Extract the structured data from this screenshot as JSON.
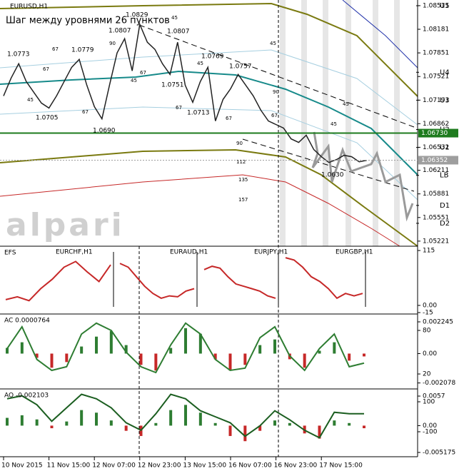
{
  "chart_data": [
    {
      "type": "line",
      "title": "EURUSD,H1",
      "subtitle": "Шаг между уровнями 26 пунктов",
      "watermark": "alpari",
      "categories": [
        "10 Nov 2015",
        null,
        null,
        null,
        null,
        null,
        "11 Nov 15:00",
        null,
        null,
        null,
        null,
        null,
        "12 Nov 07:00",
        null,
        null,
        null,
        null,
        null,
        "12 Nov 23:00",
        null,
        null,
        null,
        null,
        null,
        "13 Nov 15:00",
        null,
        null,
        null,
        null,
        null,
        "16 Nov 07:00",
        null,
        null,
        null,
        null,
        null,
        "16 Nov 23:00",
        null,
        null,
        null,
        null,
        null,
        "17 Nov 15:00",
        null,
        null,
        null,
        null,
        null,
        null
      ],
      "series": [
        {
          "color": "#222222",
          "values": [
            1.0725,
            1.075,
            1.077,
            1.0745,
            1.073,
            1.0715,
            1.0708,
            1.0725,
            1.0745,
            1.0765,
            1.0776,
            1.074,
            1.071,
            1.0693,
            1.074,
            1.0785,
            1.0805,
            1.076,
            1.0825,
            1.08,
            1.079,
            1.077,
            1.0755,
            1.08,
            1.074,
            1.0716,
            1.0745,
            1.0765,
            1.069,
            1.072,
            1.0735,
            1.0755,
            1.074,
            1.0725,
            1.0705,
            1.069,
            1.0685,
            1.068,
            1.0665,
            1.066,
            1.067,
            1.065,
            1.064,
            1.0632,
            1.0636,
            1.0642,
            1.064,
            1.0633,
            1.0635
          ]
        }
      ],
      "ylim": [
        1.0515,
        1.0859
      ],
      "yticks": [
        1.08511,
        1.08181,
        1.07851,
        1.07521,
        1.07191,
        1.06862,
        1.06532,
        1.06211,
        1.05881,
        1.05551,
        1.05221
      ],
      "levels": [
        {
          "name": "U5",
          "value": 1.0851
        },
        {
          "name": "U4",
          "value": 1.0758
        },
        {
          "name": "U3",
          "value": 1.0719
        },
        {
          "name": "U2",
          "value": 1.0678
        },
        {
          "name": "U1",
          "value": 1.0653
        },
        {
          "name": "LB",
          "value": 1.0614
        },
        {
          "name": "D1",
          "value": 1.0572
        },
        {
          "name": "D2",
          "value": 1.0547
        }
      ],
      "price_labels": [
        {
          "value": 1.0673,
          "label": "1.06730",
          "color": "#1e7b1e"
        },
        {
          "value": 1.06352,
          "label": "1.06352",
          "color": "#9e9e9e"
        }
      ],
      "swing_labels": [
        "1.0773",
        "1.0705",
        "1.0779",
        "1.0690",
        "1.0807",
        "1.0829",
        "1.0807",
        "1.0751",
        "1.0769",
        "1.0713",
        "1.0757",
        "1.0630"
      ],
      "step_labels": [
        67,
        67,
        45,
        67,
        90,
        67,
        45,
        45,
        45,
        90,
        67,
        67,
        45,
        67,
        45,
        45,
        90,
        112,
        135,
        157
      ]
    },
    {
      "type": "multi",
      "title": "EFS",
      "series": [
        {
          "name": "EURCHF,H1",
          "color": "#c62828",
          "values": [
            12,
            18,
            10,
            35,
            55,
            80,
            92,
            70,
            50,
            85
          ]
        },
        {
          "name": "EURAUD,H1",
          "color": "#c62828",
          "values": [
            88,
            80,
            60,
            40,
            25,
            15,
            20,
            18,
            30,
            35
          ]
        },
        {
          "name": "EURJPY,H1",
          "color": "#c62828",
          "values": [
            75,
            82,
            78,
            60,
            45,
            40,
            35,
            30,
            20,
            15
          ]
        },
        {
          "name": "EURGBP,H1",
          "color": "#c62828",
          "values": [
            100,
            95,
            80,
            60,
            50,
            35,
            15,
            25,
            20,
            25
          ]
        }
      ],
      "ylim": [
        -18,
        124
      ],
      "yticks": [
        115,
        {
          "value": 0,
          "label": "0.00"
        },
        -15
      ]
    },
    {
      "type": "bar",
      "title": "AC 0.0000764",
      "values": [
        0.0004,
        0.0008,
        -0.0003,
        -0.001,
        -0.0006,
        0.0005,
        0.0012,
        0.0016,
        0.0006,
        -0.0008,
        -0.0012,
        0.0004,
        0.0018,
        0.0014,
        -0.0004,
        -0.0012,
        -0.0008,
        0.0006,
        0.001,
        -0.0004,
        -0.001,
        0.0002,
        0.0008,
        -0.0005,
        -0.0002
      ],
      "series": [
        {
          "color": "#2e7d32",
          "axis": "y2",
          "values": [
            55,
            85,
            40,
            25,
            30,
            75,
            90,
            80,
            50,
            30,
            22,
            60,
            90,
            75,
            40,
            25,
            28,
            70,
            85,
            45,
            25,
            55,
            75,
            30,
            35
          ]
        }
      ],
      "ylim": [
        -0.0025,
        0.0028
      ],
      "yticks": [
        0.002245,
        {
          "value": 0,
          "label": "0.00"
        },
        -0.002078
      ],
      "y2lim": [
        -0.6,
        102.6
      ],
      "y2ticks": [
        80,
        20
      ]
    },
    {
      "type": "bar",
      "title": "AO -0.002103",
      "values": [
        0.0015,
        0.002,
        0.0012,
        -0.0005,
        0.0008,
        0.003,
        0.0025,
        0.001,
        -0.001,
        -0.002,
        0.0005,
        0.003,
        0.004,
        0.0025,
        0.0005,
        -0.002,
        -0.003,
        -0.001,
        0.001,
        0.0005,
        -0.0015,
        -0.0025,
        0.001,
        0.0005,
        -0.0005
      ],
      "series": [
        {
          "color": "#1b5e20",
          "axis": "y2",
          "values": [
            120,
            140,
            80,
            -30,
            60,
            150,
            120,
            60,
            -40,
            -90,
            20,
            150,
            120,
            40,
            0,
            -40,
            -130,
            -60,
            40,
            -20,
            -90,
            -140,
            30,
            20,
            20
          ]
        }
      ],
      "ylim": [
        -0.006,
        0.00708
      ],
      "yticks": [
        0.0057,
        {
          "value": 0,
          "label": "0.00"
        },
        -0.005175
      ],
      "y2lim": [
        -266.7,
        185.7
      ],
      "y2ticks": [
        100,
        -100
      ]
    }
  ]
}
